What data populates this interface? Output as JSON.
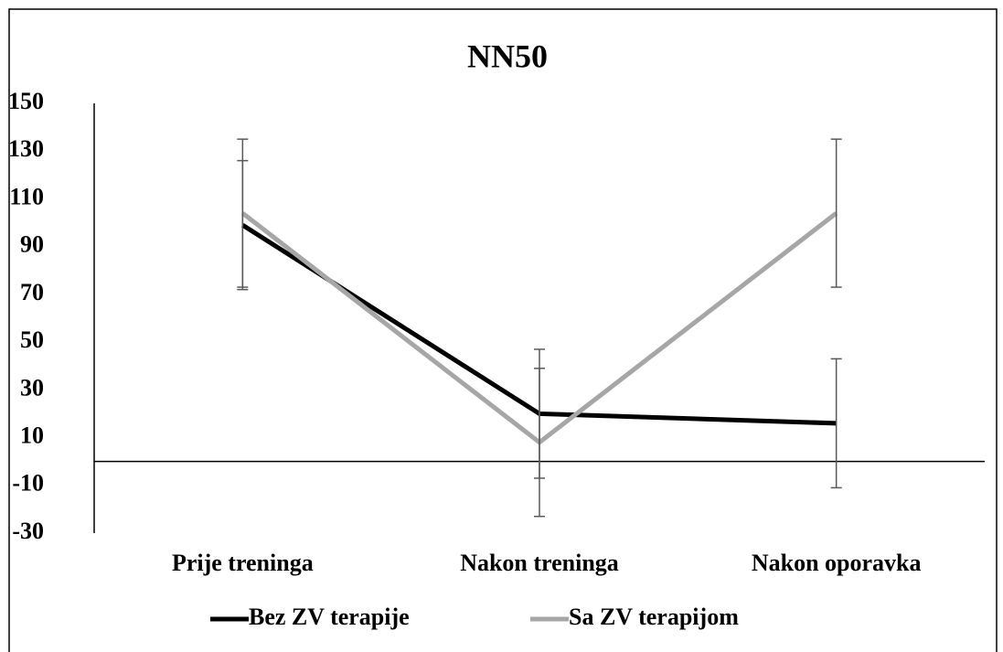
{
  "chart_data": {
    "type": "line",
    "title": "NN50",
    "categories": [
      "Prije treninga",
      "Nakon treninga",
      "Nakon oporavka"
    ],
    "series": [
      {
        "name": "Bez ZV terapije",
        "color": "#000000",
        "values": [
          99,
          20,
          16
        ],
        "errors": [
          27,
          27,
          27
        ]
      },
      {
        "name": "Sa ZV terapijom",
        "color": "#a6a6a6",
        "values": [
          104,
          8,
          104
        ],
        "errors": [
          31,
          31,
          31
        ]
      }
    ],
    "ylim": [
      -30,
      150
    ],
    "yticks": [
      -30,
      -10,
      10,
      30,
      50,
      70,
      90,
      110,
      130,
      150
    ],
    "legend": "bottom",
    "error_color": "#595959"
  }
}
